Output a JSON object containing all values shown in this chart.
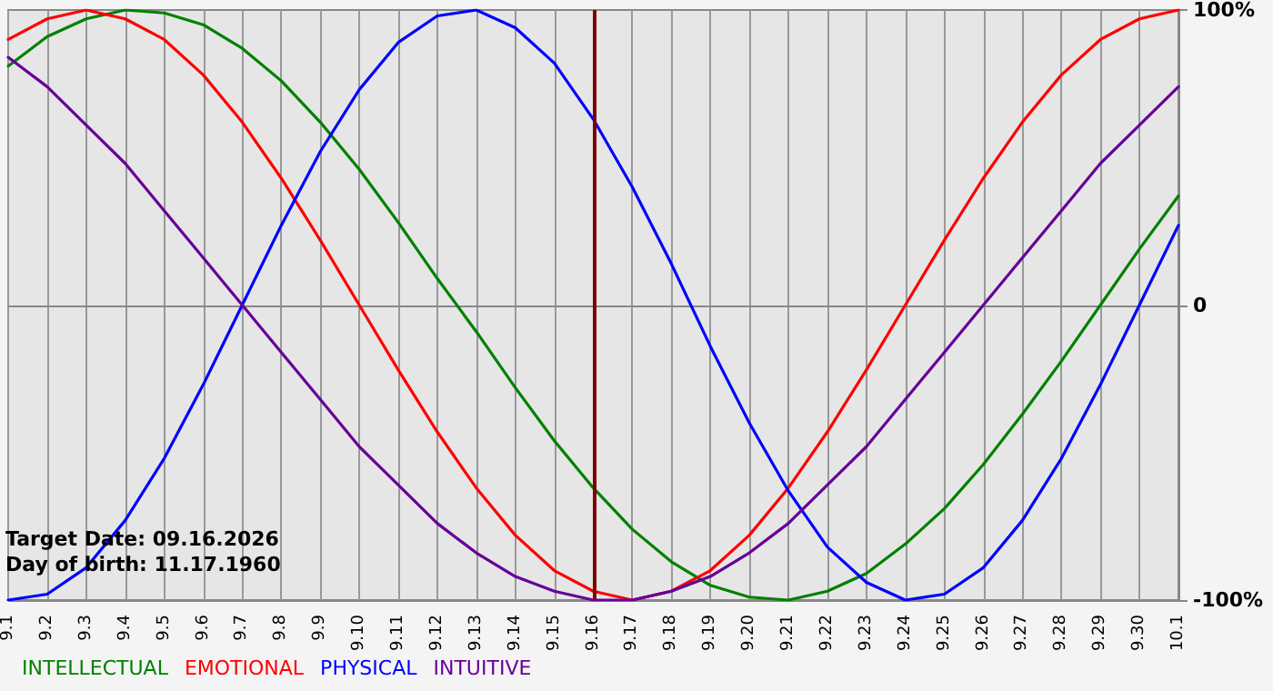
{
  "chart_data": {
    "type": "line",
    "categories": [
      "9.1",
      "9.2",
      "9.3",
      "9.4",
      "9.5",
      "9.6",
      "9.7",
      "9.8",
      "9.9",
      "9.10",
      "9.11",
      "9.12",
      "9.13",
      "9.14",
      "9.15",
      "9.16",
      "9.17",
      "9.18",
      "9.19",
      "9.20",
      "9.21",
      "9.22",
      "9.23",
      "9.24",
      "9.25",
      "9.26",
      "9.27",
      "9.28",
      "9.29",
      "9.30",
      "10.1"
    ],
    "series": [
      {
        "name": "INTELLECTUAL",
        "color": "#008000",
        "values": [
          81,
          91,
          97,
          100,
          99,
          95,
          87,
          76,
          62,
          46,
          28,
          9,
          -9,
          -28,
          -46,
          -62,
          -76,
          -87,
          -95,
          -99,
          -100,
          -97,
          -91,
          -81,
          -69,
          -54,
          -37,
          -19,
          0,
          19,
          37
        ]
      },
      {
        "name": "EMOTIONAL",
        "color": "#ff0000",
        "values": [
          90,
          97,
          100,
          97,
          90,
          78,
          62,
          43,
          22,
          0,
          -22,
          -43,
          -62,
          -78,
          -90,
          -97,
          -100,
          -97,
          -90,
          -78,
          -62,
          -43,
          -22,
          0,
          22,
          43,
          62,
          78,
          90,
          97,
          100
        ]
      },
      {
        "name": "PHYSICAL",
        "color": "#0000ff",
        "values": [
          -100,
          -98,
          -89,
          -73,
          -52,
          -27,
          0,
          27,
          52,
          73,
          89,
          98,
          100,
          94,
          82,
          63,
          40,
          14,
          -14,
          -40,
          -63,
          -82,
          -94,
          -100,
          -98,
          -89,
          -73,
          -52,
          -27,
          0,
          27
        ]
      },
      {
        "name": "INTUITIVE",
        "color": "#660099",
        "values": [
          84,
          74,
          61,
          48,
          32,
          16,
          0,
          -16,
          -32,
          -48,
          -61,
          -74,
          -84,
          -92,
          -97,
          -100,
          -100,
          -97,
          -92,
          -84,
          -74,
          -61,
          -48,
          -32,
          -16,
          0,
          16,
          32,
          48,
          61,
          74
        ]
      }
    ],
    "ylim": [
      -100,
      100
    ],
    "yticks": [
      {
        "value": -100,
        "label": "-100%"
      },
      0,
      {
        "value": 100,
        "label": "100%"
      }
    ],
    "ref_lines": [
      {
        "axis": "x",
        "value": "9.16",
        "color": "#800000"
      }
    ],
    "annotations": [
      "Target Date: 09.16.2026",
      "Day of birth: 11.17.1960"
    ],
    "grid": true,
    "legend": "bottom left",
    "marker": "none",
    "line_style": "solid"
  }
}
